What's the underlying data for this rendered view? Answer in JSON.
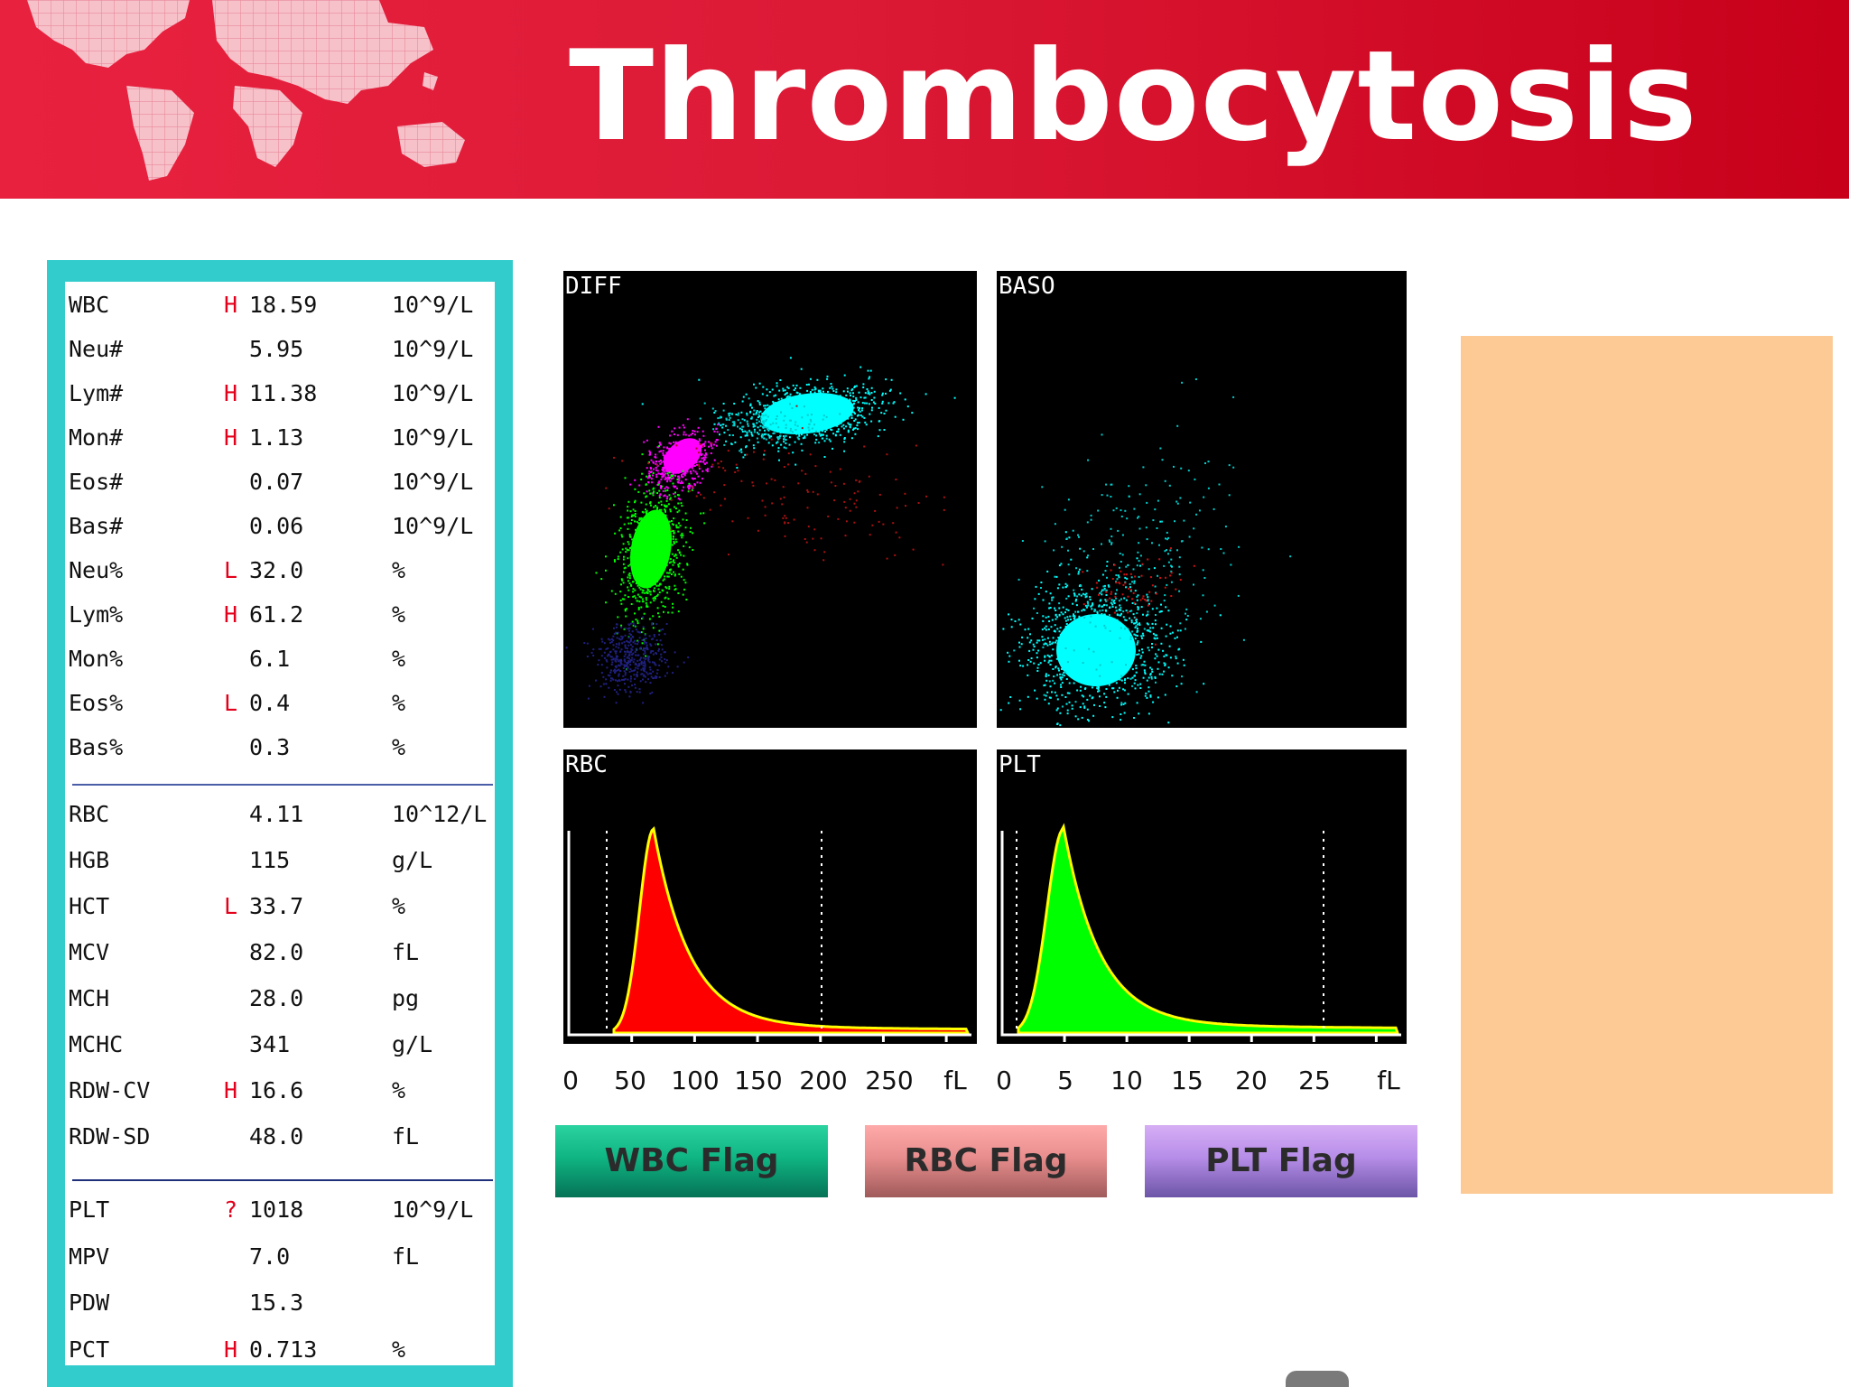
{
  "header": {
    "title": "Thrombocytosis",
    "colors": {
      "background": "#dc1a36",
      "map": "#f5b8c2"
    }
  },
  "results": {
    "group1": [
      {
        "name": "WBC",
        "flag": "H",
        "value": "18.59",
        "unit": "10^9/L"
      },
      {
        "name": "Neu#",
        "flag": "",
        "value": "5.95",
        "unit": "10^9/L"
      },
      {
        "name": "Lym#",
        "flag": "H",
        "value": "11.38",
        "unit": "10^9/L"
      },
      {
        "name": "Mon#",
        "flag": "H",
        "value": "1.13",
        "unit": "10^9/L"
      },
      {
        "name": "Eos#",
        "flag": "",
        "value": "0.07",
        "unit": "10^9/L"
      },
      {
        "name": "Bas#",
        "flag": "",
        "value": "0.06",
        "unit": "10^9/L"
      },
      {
        "name": "Neu%",
        "flag": "L",
        "value": "32.0",
        "unit": "%"
      },
      {
        "name": "Lym%",
        "flag": "H",
        "value": "61.2",
        "unit": "%"
      },
      {
        "name": "Mon%",
        "flag": "",
        "value": "6.1",
        "unit": "%"
      },
      {
        "name": "Eos%",
        "flag": "L",
        "value": "0.4",
        "unit": "%"
      },
      {
        "name": "Bas%",
        "flag": "",
        "value": "0.3",
        "unit": "%"
      }
    ],
    "group2": [
      {
        "name": "RBC",
        "flag": "",
        "value": "4.11",
        "unit": "10^12/L"
      },
      {
        "name": "HGB",
        "flag": "",
        "value": "115",
        "unit": "g/L"
      },
      {
        "name": "HCT",
        "flag": "L",
        "value": "33.7",
        "unit": "%"
      },
      {
        "name": "MCV",
        "flag": "",
        "value": "82.0",
        "unit": "fL"
      },
      {
        "name": "MCH",
        "flag": "",
        "value": "28.0",
        "unit": "pg"
      },
      {
        "name": "MCHC",
        "flag": "",
        "value": "341",
        "unit": "g/L"
      },
      {
        "name": "RDW-CV",
        "flag": "H",
        "value": "16.6",
        "unit": "%"
      },
      {
        "name": "RDW-SD",
        "flag": "",
        "value": "48.0",
        "unit": "fL"
      }
    ],
    "group3": [
      {
        "name": "PLT",
        "flag": "?",
        "value": "1018",
        "unit": "10^9/L"
      },
      {
        "name": "MPV",
        "flag": "",
        "value": "7.0",
        "unit": "fL"
      },
      {
        "name": "PDW",
        "flag": "",
        "value": "15.3",
        "unit": ""
      },
      {
        "name": "PCT",
        "flag": "H",
        "value": "0.713",
        "unit": "%"
      }
    ]
  },
  "plots": {
    "diff": {
      "label": "DIFF"
    },
    "baso": {
      "label": "BASO"
    },
    "rbc": {
      "label": "RBC",
      "color": "#ff0000",
      "edge": "#ffff00"
    },
    "plt": {
      "label": "PLT",
      "color": "#00ff00",
      "edge": "#ffff00"
    }
  },
  "axes": {
    "rbc_ticks": [
      "0",
      "50",
      "100",
      "150",
      "200",
      "250",
      "fL"
    ],
    "plt_ticks": [
      "0",
      "5",
      "10",
      "15",
      "20",
      "25",
      "fL"
    ]
  },
  "flags": {
    "wbc": "WBC Flag",
    "rbc": "RBC Flag",
    "plt": "PLT Flag"
  },
  "side_box": {
    "color": "#fdc994"
  }
}
